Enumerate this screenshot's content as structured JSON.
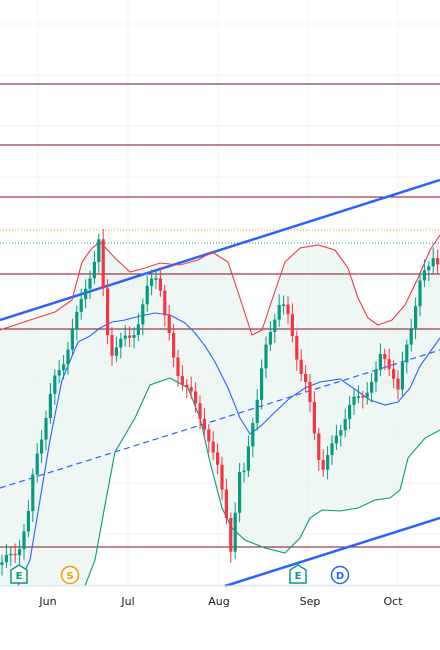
{
  "chart_data": {
    "type": "candlestick",
    "xlabel": "",
    "ylabel": "",
    "x_tick_labels": [
      "Jun",
      "Jul",
      "Aug",
      "Sep",
      "Oct"
    ],
    "colors": {
      "up": "#089981",
      "down": "#f23645",
      "bb_upper": "#f23645",
      "bb_lower": "#089981",
      "bb_basis": "#2962ff",
      "bb_fill": "#e3f2ec",
      "channel": "#2962ff",
      "hlevels": "#880e1e",
      "hline_dotted_orange": "#ff9800",
      "hline_dotted_teal": "#089981",
      "grid": "#f0f3fa"
    },
    "events": [
      {
        "label": "E",
        "type": "earnings",
        "color": "#089981"
      },
      {
        "label": "S",
        "type": "split",
        "color": "#ff9800"
      },
      {
        "label": "E",
        "type": "earnings",
        "color": "#089981"
      },
      {
        "label": "D",
        "type": "dividend",
        "color": "#2962ff"
      }
    ]
  }
}
